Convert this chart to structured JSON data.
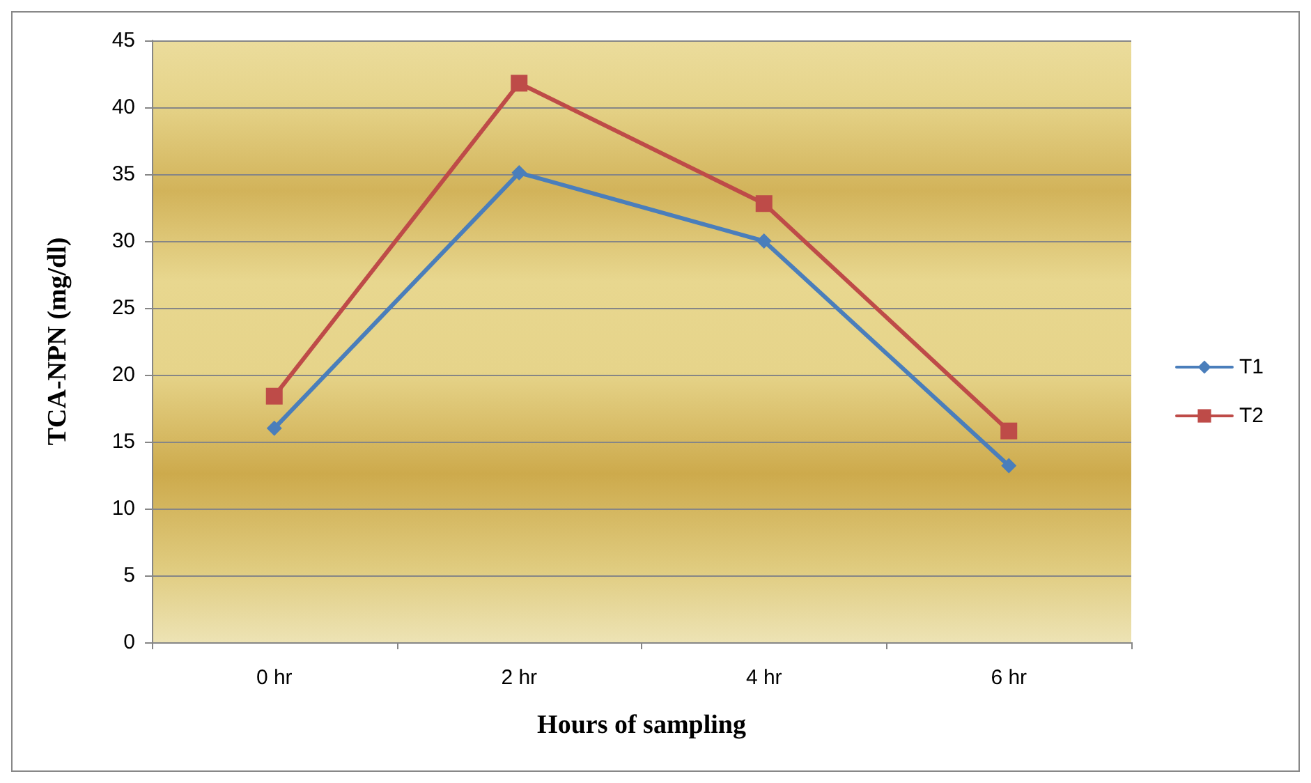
{
  "chart_data": {
    "type": "line",
    "xlabel": "Hours of sampling",
    "ylabel": "TCA-NPN (mg/dl)",
    "categories": [
      "0 hr",
      "2 hr",
      "4 hr",
      "6 hr"
    ],
    "series": [
      {
        "name": "T1",
        "color": "#4a7ebb",
        "marker": "diamond",
        "values": [
          16.0,
          35.1,
          30.0,
          13.2
        ]
      },
      {
        "name": "T2",
        "color": "#be4b48",
        "marker": "square",
        "values": [
          18.4,
          41.8,
          32.8,
          15.8
        ]
      }
    ],
    "ylim": [
      0,
      45
    ],
    "yticks": [
      0,
      5,
      10,
      15,
      20,
      25,
      30,
      35,
      40,
      45
    ],
    "grid": "y",
    "legend": "right",
    "line_style": "solid"
  }
}
